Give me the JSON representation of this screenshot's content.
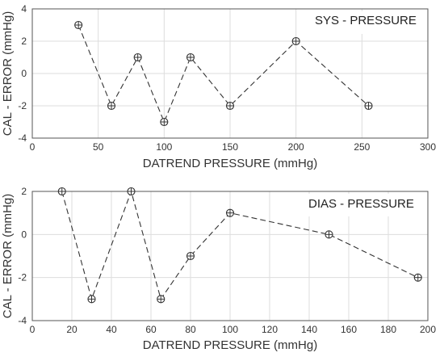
{
  "chart_data": [
    {
      "type": "line",
      "title": "",
      "annotation": "SYS - PRESSURE",
      "xlabel": "DATREND PRESSURE (mmHg)",
      "ylabel": "CAL - ERROR (mmHg)",
      "xlim": [
        0,
        300
      ],
      "ylim": [
        -4,
        4
      ],
      "xticks": [
        0,
        50,
        100,
        150,
        200,
        250,
        300
      ],
      "yticks": [
        -4,
        -2,
        0,
        2,
        4
      ],
      "grid": true,
      "line_style": "dashed",
      "marker": "circle-plus",
      "x": [
        35,
        60,
        80,
        100,
        120,
        150,
        200,
        255
      ],
      "y": [
        3,
        -2,
        1,
        -3,
        1,
        -2,
        2,
        -2
      ]
    },
    {
      "type": "line",
      "title": "",
      "annotation": "DIAS - PRESSURE",
      "xlabel": "DATREND PRESSURE (mmHg)",
      "ylabel": "CAL - ERROR (mmHg)",
      "xlim": [
        0,
        200
      ],
      "ylim": [
        -4,
        2
      ],
      "xticks": [
        0,
        20,
        40,
        60,
        80,
        100,
        120,
        140,
        160,
        180,
        200
      ],
      "yticks": [
        -4,
        -2,
        0,
        2
      ],
      "grid": true,
      "line_style": "dashed",
      "marker": "circle-plus",
      "x": [
        15,
        30,
        50,
        65,
        80,
        100,
        150,
        195
      ],
      "y": [
        2,
        -3,
        2,
        -3,
        -1,
        1,
        0,
        -2
      ]
    }
  ],
  "colors": {
    "line": "#333333",
    "grid": "#dddddd",
    "axes": "#555555"
  }
}
